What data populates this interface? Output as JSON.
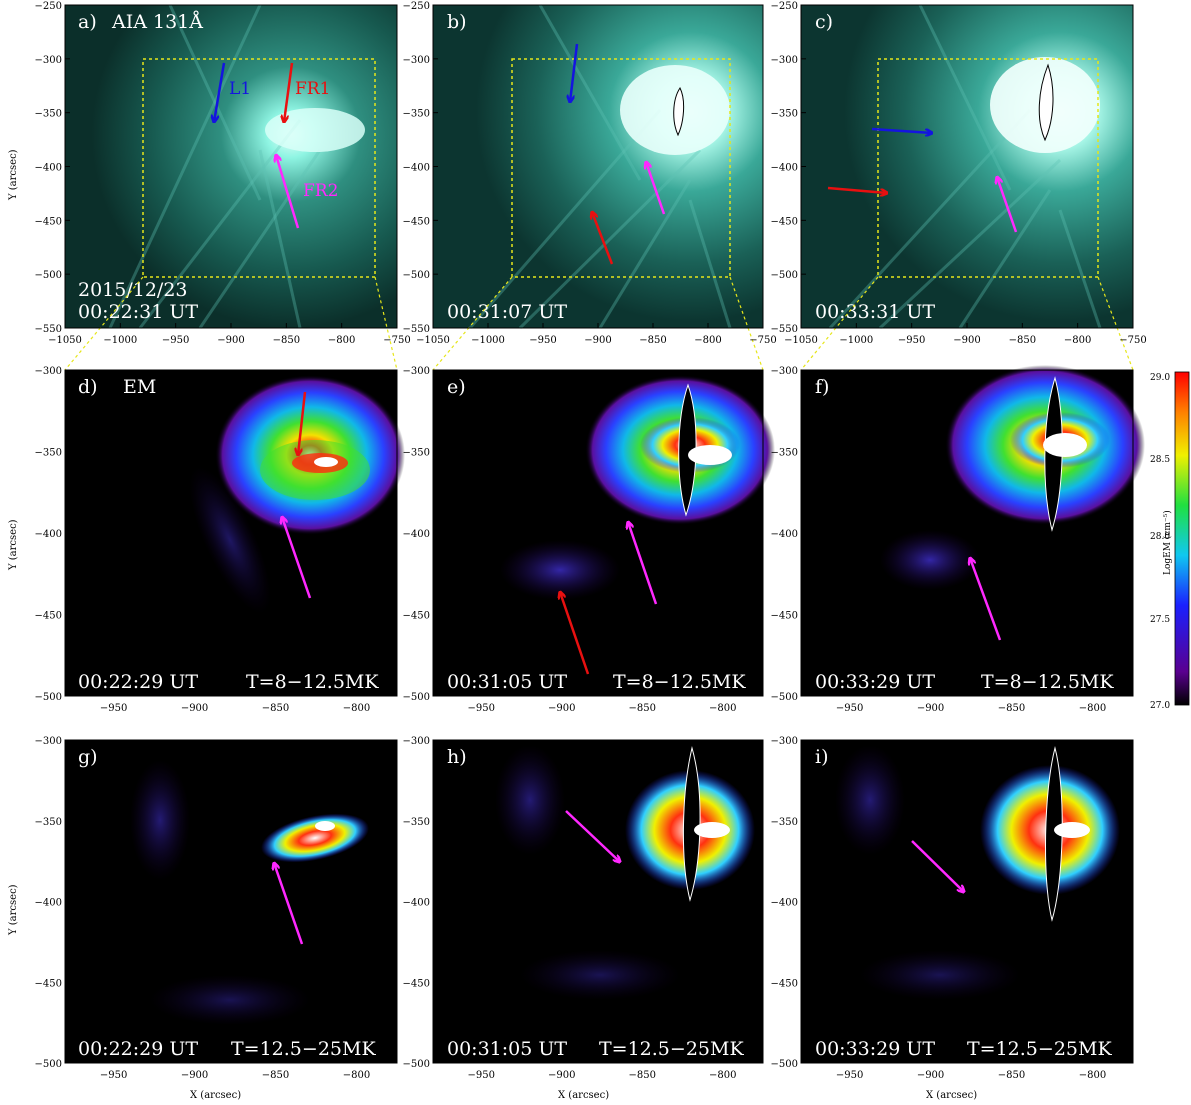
{
  "row1": {
    "panels": [
      {
        "letter": "a)",
        "title": "AIA 131Å",
        "date": "2015/12/23",
        "time": "00:22:31 UT"
      },
      {
        "letter": "b)",
        "time": "00:31:07 UT"
      },
      {
        "letter": "c)",
        "time": "00:33:31 UT"
      }
    ],
    "labels": {
      "l1": "L1",
      "fr1": "FR1",
      "fr2": "FR2"
    },
    "xticks": [
      "−1050",
      "−1000",
      "−950",
      "−900",
      "−850",
      "−800",
      "−750"
    ],
    "yticks": [
      "−250",
      "−300",
      "−350",
      "−400",
      "−450",
      "−500",
      "−550"
    ],
    "ylabel": "Y (arcsec)"
  },
  "row2": {
    "panels": [
      {
        "letter": "d)",
        "title": "EM",
        "time": "00:22:29 UT",
        "temp": "T=8−12.5MK"
      },
      {
        "letter": "e)",
        "time": "00:31:05 UT",
        "temp": "T=8−12.5MK"
      },
      {
        "letter": "f)",
        "time": "00:33:29 UT",
        "temp": "T=8−12.5MK"
      }
    ],
    "xticks": [
      "−950",
      "−900",
      "−850",
      "−800"
    ],
    "yticks": [
      "−300",
      "−350",
      "−400",
      "−450",
      "−500"
    ],
    "ylabel": "Y (arcsec)"
  },
  "row3": {
    "panels": [
      {
        "letter": "g)",
        "time": "00:22:29 UT",
        "temp": "T=12.5−25MK"
      },
      {
        "letter": "h)",
        "time": "00:31:05 UT",
        "temp": "T=12.5−25MK"
      },
      {
        "letter": "i)",
        "time": "00:33:29 UT",
        "temp": "T=12.5−25MK"
      }
    ],
    "xticks": [
      "−950",
      "−900",
      "−850",
      "−800"
    ],
    "yticks": [
      "−300",
      "−350",
      "−400",
      "−450",
      "−500"
    ],
    "ylabel": "Y (arcsec)",
    "xlabel": "X (arcsec)"
  },
  "colorbar": {
    "ticks": [
      "29.0",
      "28.5",
      "28.0",
      "27.5",
      "27.0"
    ],
    "label": "LogEM (cm⁻⁵)"
  },
  "colors": {
    "aia_bg": "#0e3b35",
    "aia_glow": "#7fffe6",
    "arrow_red": "#e81010",
    "arrow_blue": "#1414e0",
    "arrow_magenta": "#ff28ff",
    "box_yellow": "#e6e61a"
  }
}
